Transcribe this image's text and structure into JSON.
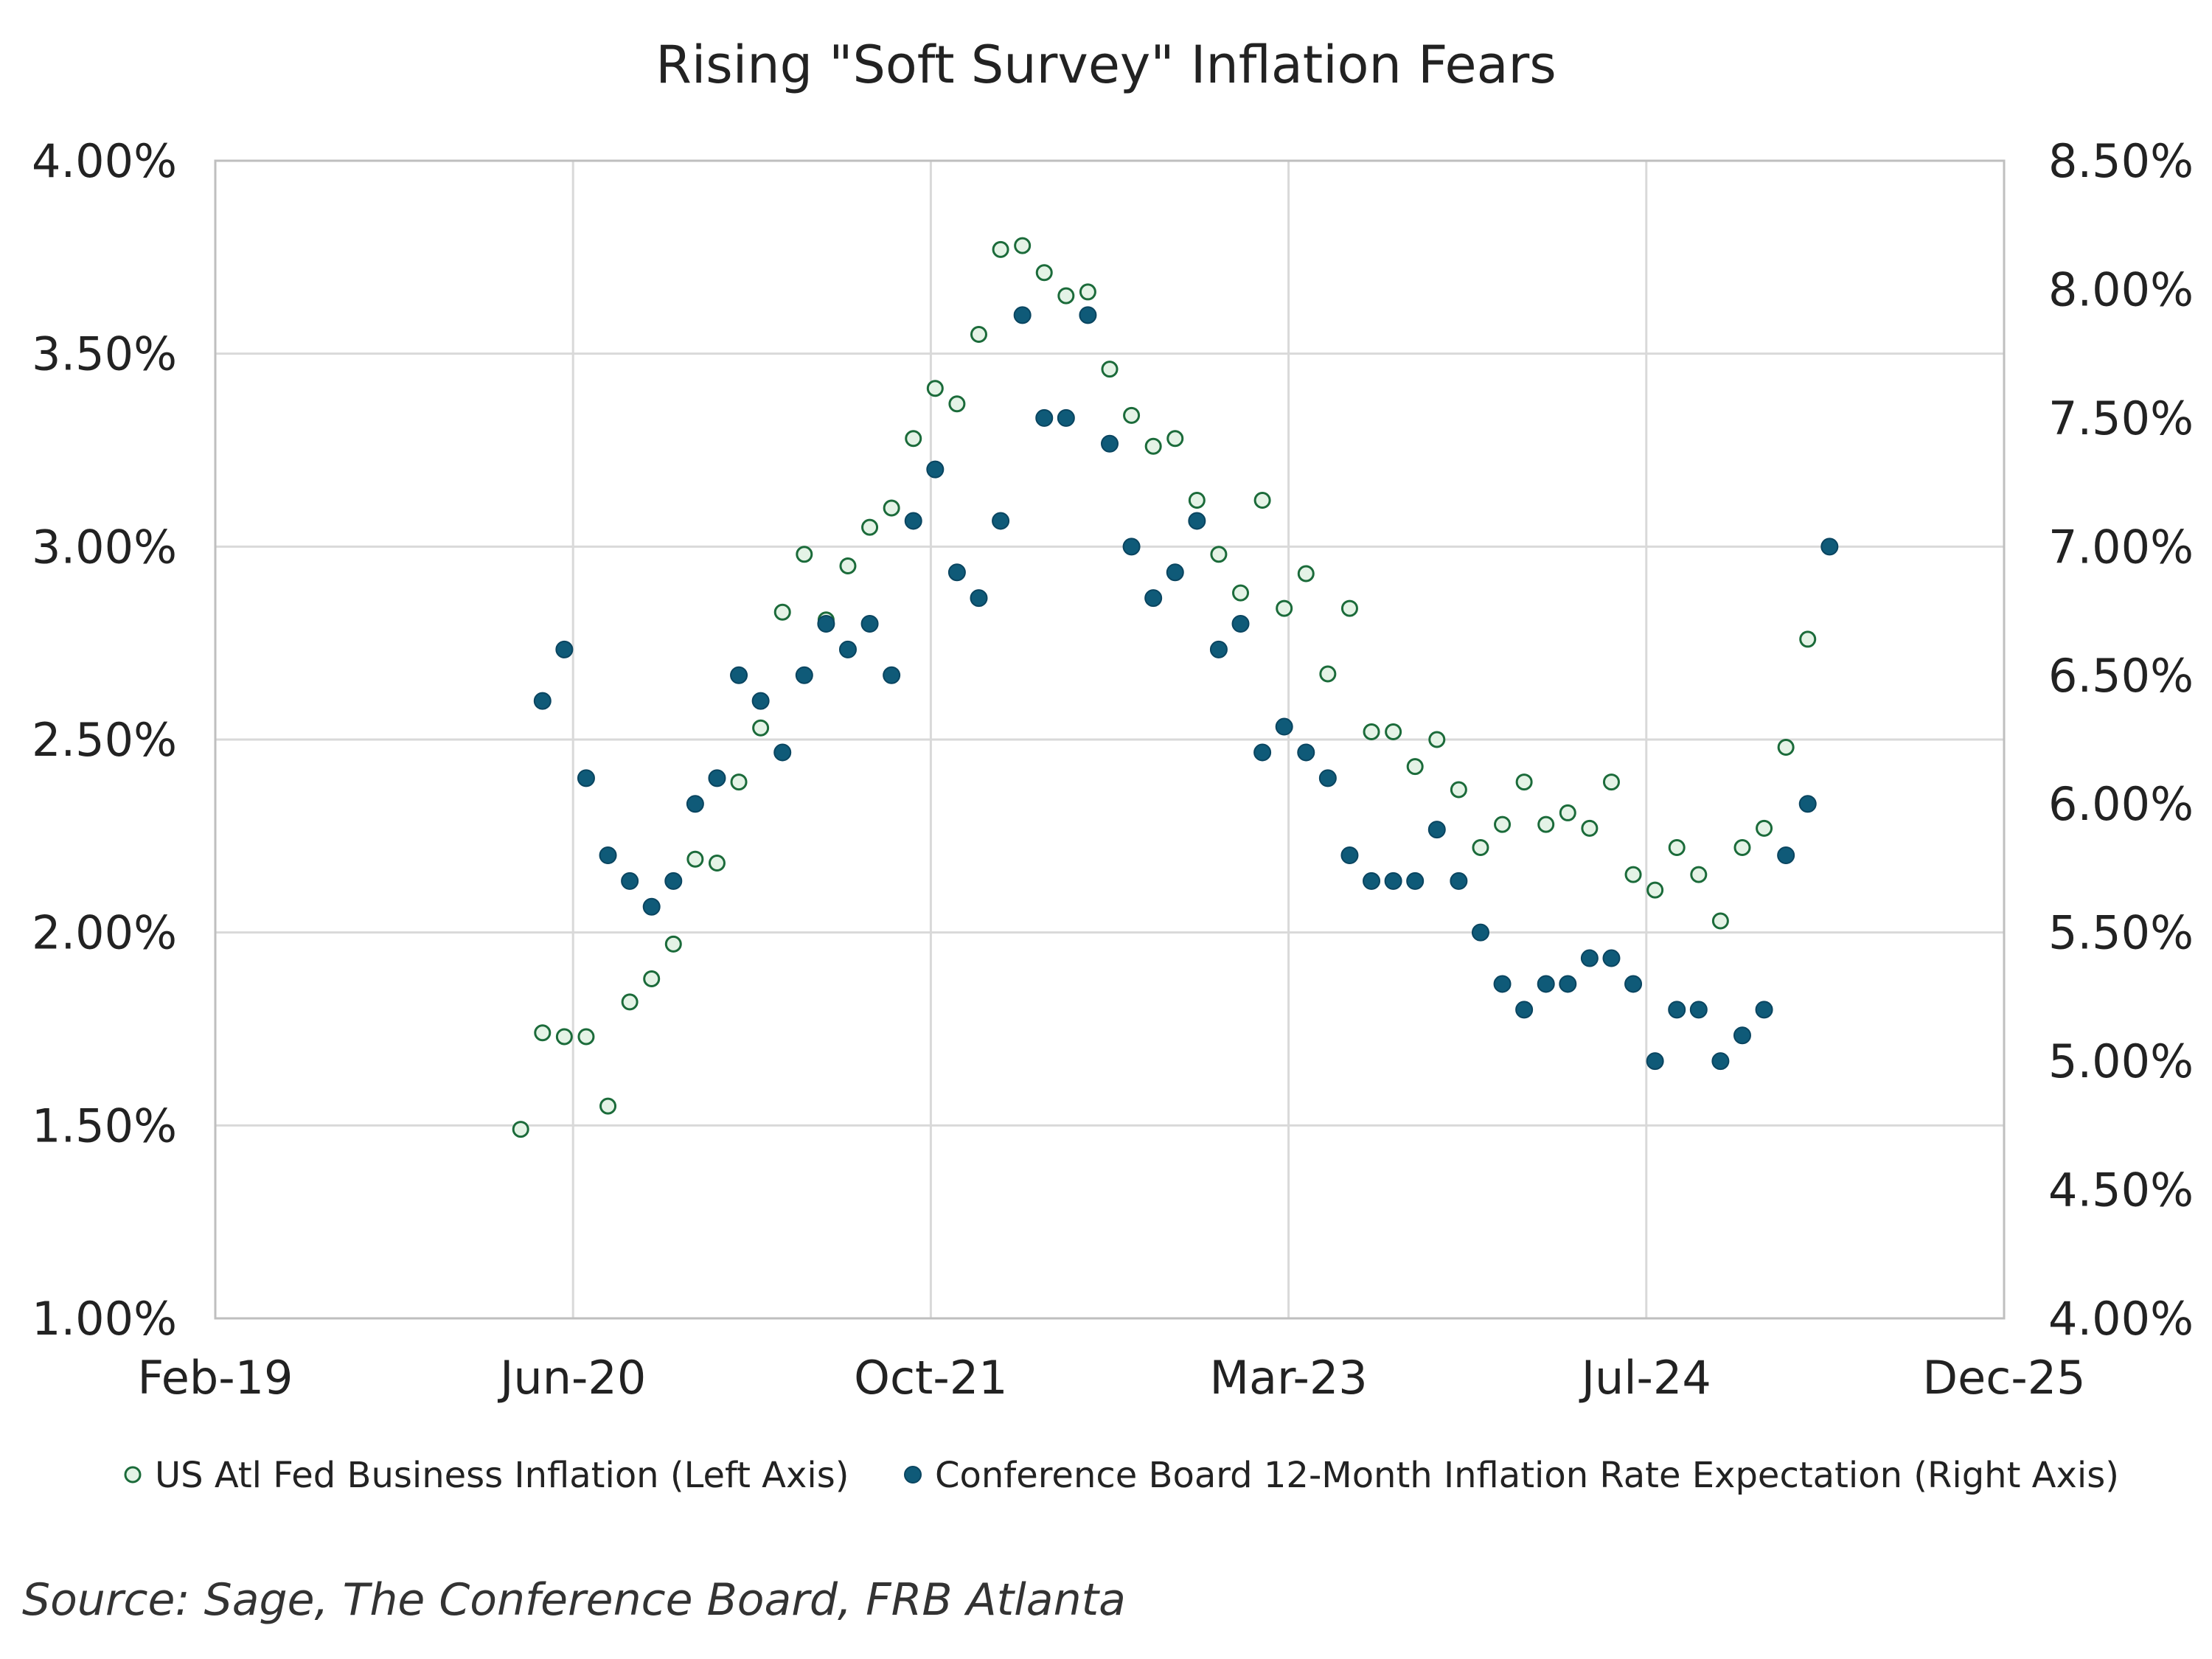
{
  "chart_data": {
    "type": "scatter",
    "title": "Rising \"Soft Survey\" Inflation Fears",
    "xlabel": "",
    "ylabel": "",
    "x_tick_labels": [
      "Feb-19",
      "Jun-20",
      "Oct-21",
      "Mar-23",
      "Jul-24",
      "Dec-25"
    ],
    "y_left_tick_labels": [
      "1.00%",
      "1.50%",
      "2.00%",
      "2.50%",
      "3.00%",
      "3.50%",
      "4.00%"
    ],
    "y_right_tick_labels": [
      "4.00%",
      "4.50%",
      "5.00%",
      "5.50%",
      "6.00%",
      "6.50%",
      "7.00%",
      "7.50%",
      "8.00%",
      "8.50%"
    ],
    "y_left_range": [
      1.0,
      4.0
    ],
    "y_right_range": [
      4.0,
      8.5
    ],
    "x_range": [
      "2019-02",
      "2025-12"
    ],
    "grid": true,
    "legend_position": "bottom",
    "colors": {
      "atl_fill": "#e4f3e6",
      "atl_stroke": "#1b6b3a",
      "cb_fill": "#0f5a78",
      "grid": "#d9d9d9",
      "axis": "#bfbfbf"
    },
    "series": [
      {
        "name": "US Atl Fed Business Inflation (Left Axis)",
        "axis": "left",
        "points": [
          [
            "2020-04",
            1.49
          ],
          [
            "2020-05",
            1.74
          ],
          [
            "2020-06",
            1.73
          ],
          [
            "2020-07",
            1.73
          ],
          [
            "2020-08",
            1.55
          ],
          [
            "2020-09",
            1.82
          ],
          [
            "2020-10",
            1.88
          ],
          [
            "2020-11",
            1.97
          ],
          [
            "2020-12",
            2.19
          ],
          [
            "2021-01",
            2.18
          ],
          [
            "2021-02",
            2.39
          ],
          [
            "2021-03",
            2.53
          ],
          [
            "2021-04",
            2.83
          ],
          [
            "2021-05",
            2.98
          ],
          [
            "2021-06",
            2.81
          ],
          [
            "2021-07",
            2.95
          ],
          [
            "2021-08",
            3.05
          ],
          [
            "2021-09",
            3.1
          ],
          [
            "2021-10",
            3.28
          ],
          [
            "2021-11",
            3.41
          ],
          [
            "2021-12",
            3.37
          ],
          [
            "2022-01",
            3.55
          ],
          [
            "2022-02",
            3.77
          ],
          [
            "2022-03",
            3.78
          ],
          [
            "2022-04",
            3.71
          ],
          [
            "2022-05",
            3.65
          ],
          [
            "2022-06",
            3.66
          ],
          [
            "2022-07",
            3.46
          ],
          [
            "2022-08",
            3.34
          ],
          [
            "2022-09",
            3.26
          ],
          [
            "2022-10",
            3.28
          ],
          [
            "2022-11",
            3.12
          ],
          [
            "2022-12",
            2.98
          ],
          [
            "2023-01",
            2.88
          ],
          [
            "2023-02",
            3.12
          ],
          [
            "2023-03",
            2.84
          ],
          [
            "2023-04",
            2.93
          ],
          [
            "2023-05",
            2.67
          ],
          [
            "2023-06",
            2.84
          ],
          [
            "2023-07",
            2.52
          ],
          [
            "2023-08",
            2.52
          ],
          [
            "2023-09",
            2.43
          ],
          [
            "2023-10",
            2.5
          ],
          [
            "2023-11",
            2.37
          ],
          [
            "2023-12",
            2.22
          ],
          [
            "2024-01",
            2.28
          ],
          [
            "2024-02",
            2.39
          ],
          [
            "2024-03",
            2.28
          ],
          [
            "2024-04",
            2.31
          ],
          [
            "2024-05",
            2.27
          ],
          [
            "2024-06",
            2.39
          ],
          [
            "2024-07",
            2.15
          ],
          [
            "2024-08",
            2.11
          ],
          [
            "2024-09",
            2.22
          ],
          [
            "2024-10",
            2.15
          ],
          [
            "2024-11",
            2.03
          ],
          [
            "2024-12",
            2.22
          ],
          [
            "2025-01",
            2.27
          ],
          [
            "2025-02",
            2.48
          ],
          [
            "2025-03",
            2.76
          ]
        ]
      },
      {
        "name": "Conference Board 12-Month Inflation Rate Expectation (Right Axis)",
        "axis": "right",
        "points": [
          [
            "2020-05",
            6.4
          ],
          [
            "2020-06",
            6.6
          ],
          [
            "2020-07",
            6.1
          ],
          [
            "2020-08",
            5.8
          ],
          [
            "2020-09",
            5.7
          ],
          [
            "2020-10",
            5.6
          ],
          [
            "2020-11",
            5.7
          ],
          [
            "2020-12",
            6.0
          ],
          [
            "2021-01",
            6.1
          ],
          [
            "2021-02",
            6.5
          ],
          [
            "2021-03",
            6.4
          ],
          [
            "2021-04",
            6.2
          ],
          [
            "2021-05",
            6.5
          ],
          [
            "2021-06",
            6.7
          ],
          [
            "2021-07",
            6.6
          ],
          [
            "2021-08",
            6.7
          ],
          [
            "2021-09",
            6.5
          ],
          [
            "2021-10",
            7.1
          ],
          [
            "2021-11",
            7.3
          ],
          [
            "2021-12",
            6.9
          ],
          [
            "2022-01",
            6.8
          ],
          [
            "2022-02",
            7.1
          ],
          [
            "2022-03",
            7.9
          ],
          [
            "2022-04",
            7.5
          ],
          [
            "2022-05",
            7.5
          ],
          [
            "2022-06",
            7.9
          ],
          [
            "2022-07",
            7.4
          ],
          [
            "2022-08",
            7.0
          ],
          [
            "2022-09",
            6.8
          ],
          [
            "2022-10",
            6.9
          ],
          [
            "2022-11",
            7.1
          ],
          [
            "2022-12",
            6.6
          ],
          [
            "2023-01",
            6.7
          ],
          [
            "2023-02",
            6.2
          ],
          [
            "2023-03",
            6.3
          ],
          [
            "2023-04",
            6.2
          ],
          [
            "2023-05",
            6.1
          ],
          [
            "2023-06",
            5.8
          ],
          [
            "2023-07",
            5.7
          ],
          [
            "2023-08",
            5.7
          ],
          [
            "2023-09",
            5.7
          ],
          [
            "2023-10",
            5.9
          ],
          [
            "2023-11",
            5.7
          ],
          [
            "2023-12",
            5.5
          ],
          [
            "2024-01",
            5.3
          ],
          [
            "2024-02",
            5.2
          ],
          [
            "2024-03",
            5.3
          ],
          [
            "2024-04",
            5.3
          ],
          [
            "2024-05",
            5.4
          ],
          [
            "2024-06",
            5.4
          ],
          [
            "2024-07",
            5.3
          ],
          [
            "2024-08",
            5.0
          ],
          [
            "2024-09",
            5.2
          ],
          [
            "2024-10",
            5.2
          ],
          [
            "2024-11",
            5.0
          ],
          [
            "2024-12",
            5.1
          ],
          [
            "2025-01",
            5.2
          ],
          [
            "2025-02",
            5.8
          ],
          [
            "2025-03",
            6.0
          ],
          [
            "2025-04",
            7.0
          ]
        ]
      }
    ]
  },
  "source": "Source: Sage, The Conference Board, FRB Atlanta"
}
